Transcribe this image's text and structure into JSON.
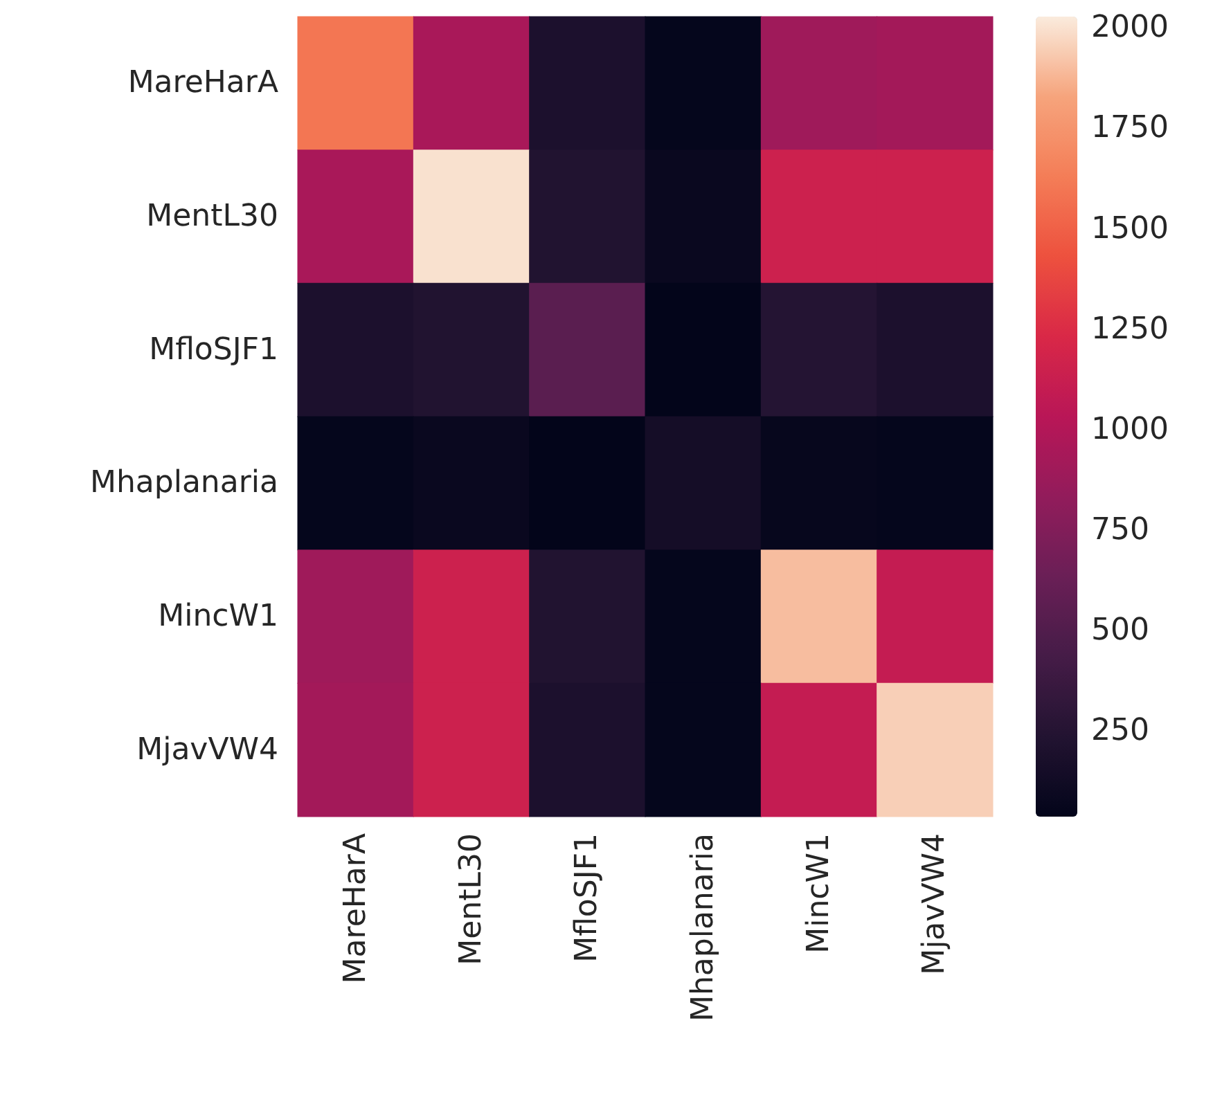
{
  "chart_data": {
    "type": "heatmap",
    "categories": [
      "MareHarA",
      "MentL30",
      "MfloSJF1",
      "Mhaplanaria",
      "MincW1",
      "MjavVW4"
    ],
    "y_categories": [
      "MareHarA",
      "MentL30",
      "MfloSJF1",
      "Mhaplanaria",
      "MincW1",
      "MjavVW4"
    ],
    "cells": [
      [
        1600,
        950,
        200,
        50,
        900,
        920
      ],
      [
        950,
        2000,
        230,
        80,
        1150,
        1150
      ],
      [
        200,
        230,
        550,
        40,
        250,
        200
      ],
      [
        50,
        80,
        40,
        150,
        60,
        50
      ],
      [
        900,
        1150,
        230,
        50,
        1900,
        1100
      ],
      [
        920,
        1150,
        200,
        50,
        1100,
        1950
      ]
    ],
    "clim": [
      37,
      2028
    ],
    "cticks": [
      250,
      500,
      750,
      1000,
      1250,
      1500,
      1750,
      2000
    ]
  }
}
